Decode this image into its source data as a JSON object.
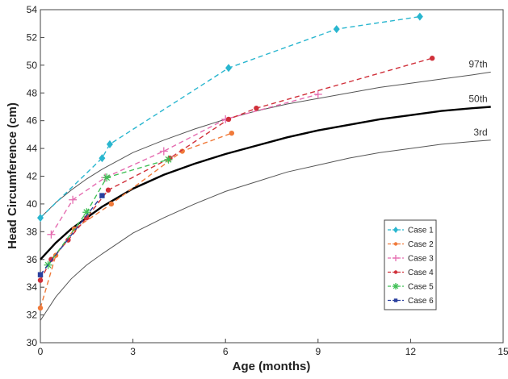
{
  "chart_data": {
    "type": "line",
    "xlabel": "Age (months)",
    "ylabel": "Head Circumference (cm)",
    "xlim": [
      0,
      15
    ],
    "ylim": [
      30,
      54
    ],
    "xticks": [
      0,
      3,
      6,
      9,
      12,
      15
    ],
    "xtick_labels": [
      "0",
      "3",
      "6",
      "9",
      "12",
      "15"
    ],
    "yticks": [
      30,
      32,
      34,
      36,
      38,
      40,
      42,
      44,
      46,
      48,
      50,
      52,
      54
    ],
    "ytick_labels": [
      "30",
      "32",
      "34",
      "36",
      "38",
      "40",
      "42",
      "44",
      "46",
      "48",
      "50",
      "52",
      "54"
    ],
    "grid": false,
    "legend_position": "bottom-right",
    "reference_curves": [
      {
        "name": "97th",
        "color": "#555555",
        "x": [
          0,
          0.5,
          1,
          1.5,
          2,
          3,
          4,
          5,
          6,
          7,
          8,
          9,
          10,
          11,
          12,
          13,
          14,
          14.6
        ],
        "y": [
          39.0,
          40.1,
          41.0,
          41.8,
          42.5,
          43.7,
          44.6,
          45.4,
          46.1,
          46.7,
          47.2,
          47.6,
          48.0,
          48.4,
          48.7,
          49.0,
          49.3,
          49.5
        ]
      },
      {
        "name": "50th",
        "color": "#000000",
        "x": [
          0,
          0.5,
          1,
          1.5,
          2,
          3,
          4,
          5,
          6,
          7,
          8,
          9,
          10,
          11,
          12,
          13,
          14,
          14.6
        ],
        "y": [
          36.0,
          37.2,
          38.2,
          39.0,
          39.8,
          41.1,
          42.1,
          42.9,
          43.6,
          44.2,
          44.8,
          45.3,
          45.7,
          46.1,
          46.4,
          46.7,
          46.9,
          47.0
        ]
      },
      {
        "name": "3rd",
        "color": "#555555",
        "x": [
          0,
          0.5,
          1,
          1.5,
          2,
          3,
          4,
          5,
          6,
          7,
          8,
          9,
          10,
          11,
          12,
          13,
          14,
          14.6
        ],
        "y": [
          31.6,
          33.3,
          34.6,
          35.6,
          36.4,
          37.9,
          39.0,
          40.0,
          40.9,
          41.6,
          42.3,
          42.8,
          43.3,
          43.7,
          44.0,
          44.3,
          44.5,
          44.6
        ]
      }
    ],
    "series": [
      {
        "name": "Case 1",
        "color": "#29b6cf",
        "marker": "diamond",
        "x": [
          0,
          2.0,
          2.25,
          6.1,
          9.6,
          12.3
        ],
        "y": [
          39.0,
          43.3,
          44.3,
          49.8,
          52.6,
          53.5
        ]
      },
      {
        "name": "Case 2",
        "color": "#f07a3a",
        "marker": "circle",
        "x": [
          0,
          0.5,
          1.1,
          2.3,
          4.6,
          6.2
        ],
        "y": [
          32.5,
          36.3,
          38.2,
          40.0,
          43.8,
          45.1
        ]
      },
      {
        "name": "Case 3",
        "color": "#e56cb0",
        "marker": "plus",
        "x": [
          0.35,
          1.05,
          2.1,
          4.0,
          6.0,
          9.0
        ],
        "y": [
          37.8,
          40.3,
          41.9,
          43.8,
          46.1,
          47.9
        ]
      },
      {
        "name": "Case 4",
        "color": "#d0303a",
        "marker": "circle",
        "x": [
          0,
          0.35,
          0.9,
          1.5,
          2.2,
          4.2,
          6.1,
          7.0,
          12.7
        ],
        "y": [
          34.5,
          36.0,
          37.4,
          39.0,
          41.0,
          43.3,
          46.1,
          46.9,
          50.5
        ]
      },
      {
        "name": "Case 5",
        "color": "#3fbf55",
        "marker": "asterisk",
        "x": [
          0.25,
          1.5,
          2.15,
          4.15
        ],
        "y": [
          35.6,
          39.4,
          41.9,
          43.2
        ]
      },
      {
        "name": "Case 6",
        "color": "#2a3f9e",
        "marker": "square",
        "x": [
          0,
          2.0
        ],
        "y": [
          34.9,
          40.6
        ]
      }
    ]
  }
}
